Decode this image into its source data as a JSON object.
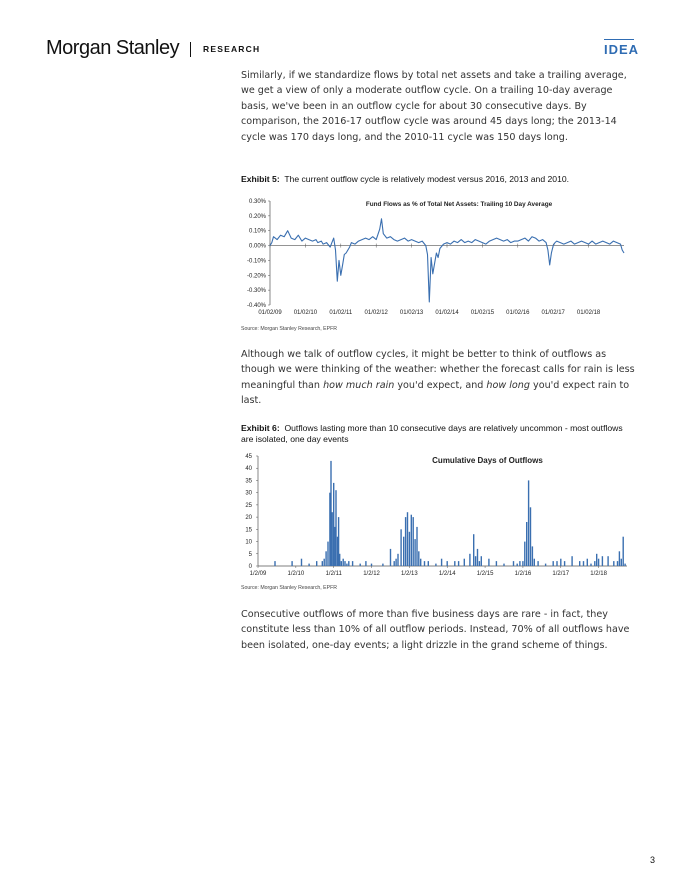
{
  "header": {
    "brand": "Morgan Stanley",
    "section": "RESEARCH",
    "tag": "IDEA"
  },
  "paragraphs": {
    "p1": "Similarly, if we standardize flows by total net assets and take a trailing average, we get a view of only a moderate outflow cycle. On a trailing 10-day average basis, we've been in an outflow cycle for about 30 consecutive days. By comparison, the 2016-17 outflow cycle was around 45 days long; the 2013-14 cycle was 170 days long, and the 2010-11 cycle was 150 days long.",
    "p2_a": "Although we talk of outflow cycles, it might be better to think of outflows as though we were thinking of the weather: whether the forecast calls for rain is less meaningful than ",
    "p2_em1": "how much rain",
    "p2_b": " you'd expect, and ",
    "p2_em2": "how long",
    "p2_c": " you'd expect rain to last.",
    "p3": "Consecutive outflows of more than five business days are rare - in fact, they constitute less than 10% of all outflow periods. Instead, 70% of all outflows have been isolated, one-day events; a light drizzle in the grand scheme of things."
  },
  "exhibits": {
    "e5_label": "Exhibit 5:",
    "e5_title": "The current outflow cycle is relatively modest versus 2016, 2013 and 2010.",
    "e6_label": "Exhibit 6:",
    "e6_title": "Outflows lasting more than 10 consecutive days are relatively uncommon - most outflows are isolated, one day events",
    "source": "Source: Morgan Stanley Research, EPFR"
  },
  "page_number": "3",
  "colors": {
    "series": "#3a6fb0",
    "accent": "#2f6cb3"
  },
  "chart_data": [
    {
      "type": "line",
      "title": "Fund Flows as % of Total Net Assets: Trailing 10 Day Average",
      "xlabel": "",
      "ylabel": "",
      "ylim": [
        -0.4,
        0.3
      ],
      "y_ticks": [
        "0.30%",
        "0.20%",
        "0.10%",
        "0.00%",
        "-0.10%",
        "-0.20%",
        "-0.30%",
        "-0.40%"
      ],
      "x_ticks": [
        "01/02/09",
        "01/02/10",
        "01/02/11",
        "01/02/12",
        "01/02/13",
        "01/02/14",
        "01/02/15",
        "01/02/16",
        "01/02/17",
        "01/02/18"
      ],
      "x_range": [
        2009.0,
        2019.0
      ],
      "series": [
        {
          "x": [
            2009.0,
            2009.05,
            2009.1,
            2009.2,
            2009.3,
            2009.4,
            2009.5,
            2009.6,
            2009.7,
            2009.8,
            2009.9,
            2010.0,
            2010.1,
            2010.2,
            2010.3,
            2010.35,
            2010.45,
            2010.5,
            2010.6,
            2010.7,
            2010.75,
            2010.8,
            2010.85,
            2010.9,
            2010.95,
            2011.0,
            2011.05,
            2011.1,
            2011.15,
            2011.2,
            2011.25,
            2011.3,
            2011.4,
            2011.5,
            2011.6,
            2011.7,
            2011.8,
            2011.9,
            2012.0,
            2012.1,
            2012.15,
            2012.2,
            2012.3,
            2012.4,
            2012.5,
            2012.6,
            2012.7,
            2012.8,
            2012.9,
            2013.0,
            2013.1,
            2013.2,
            2013.3,
            2013.4,
            2013.45,
            2013.5,
            2013.55,
            2013.6,
            2013.65,
            2013.7,
            2013.75,
            2013.8,
            2013.9,
            2014.0,
            2014.1,
            2014.2,
            2014.3,
            2014.4,
            2014.5,
            2014.6,
            2014.7,
            2014.8,
            2014.9,
            2015.0,
            2015.1,
            2015.2,
            2015.3,
            2015.4,
            2015.5,
            2015.6,
            2015.7,
            2015.8,
            2015.9,
            2016.0,
            2016.1,
            2016.2,
            2016.3,
            2016.4,
            2016.5,
            2016.6,
            2016.7,
            2016.8,
            2016.85,
            2016.9,
            2016.95,
            2017.0,
            2017.05,
            2017.1,
            2017.2,
            2017.3,
            2017.4,
            2017.5,
            2017.6,
            2017.7,
            2017.8,
            2017.9,
            2018.0,
            2018.1,
            2018.2,
            2018.3,
            2018.4,
            2018.5,
            2018.6,
            2018.7,
            2018.8,
            2018.9,
            2018.95,
            2019.0
          ],
          "y": [
            0.0,
            0.02,
            0.06,
            0.04,
            0.07,
            0.06,
            0.1,
            0.05,
            0.04,
            0.07,
            0.03,
            0.05,
            0.04,
            0.03,
            0.04,
            0.02,
            0.03,
            0.01,
            0.02,
            -0.01,
            0.02,
            0.05,
            -0.03,
            -0.24,
            -0.1,
            -0.2,
            -0.13,
            -0.06,
            -0.05,
            -0.03,
            -0.01,
            0.02,
            0.01,
            0.03,
            0.04,
            0.05,
            0.04,
            0.06,
            0.04,
            0.11,
            0.18,
            0.08,
            0.05,
            0.06,
            0.04,
            0.03,
            0.04,
            0.05,
            0.03,
            0.04,
            0.03,
            0.02,
            0.03,
            0.0,
            -0.06,
            -0.38,
            -0.08,
            -0.19,
            -0.12,
            -0.05,
            -0.08,
            -0.02,
            0.01,
            0.02,
            0.01,
            0.03,
            0.02,
            0.04,
            0.02,
            0.03,
            0.02,
            0.04,
            0.03,
            0.02,
            0.01,
            0.03,
            0.04,
            0.05,
            0.04,
            0.03,
            0.04,
            0.02,
            0.03,
            0.03,
            0.04,
            0.05,
            0.03,
            0.06,
            0.05,
            0.03,
            0.04,
            0.02,
            -0.03,
            -0.13,
            -0.05,
            0.0,
            0.02,
            0.03,
            0.02,
            0.01,
            0.02,
            0.03,
            0.01,
            0.02,
            0.03,
            0.02,
            0.01,
            0.03,
            0.01,
            0.02,
            0.03,
            0.02,
            0.01,
            0.03,
            0.02,
            0.01,
            -0.03,
            -0.05
          ]
        }
      ]
    },
    {
      "type": "bar",
      "title": "Cumulative Days of Outflows",
      "xlabel": "",
      "ylabel": "",
      "ylim": [
        0,
        45
      ],
      "y_ticks": [
        "45",
        "40",
        "35",
        "30",
        "25",
        "20",
        "15",
        "10",
        "5",
        "0"
      ],
      "x_ticks": [
        "1/2/09",
        "1/2/10",
        "1/2/11",
        "1/2/12",
        "1/2/13",
        "1/2/14",
        "1/2/15",
        "1/2/16",
        "1/2/17",
        "1/2/18"
      ],
      "x_range": [
        2009.0,
        2018.75
      ],
      "x": [
        2009.45,
        2009.9,
        2010.15,
        2010.35,
        2010.55,
        2010.7,
        2010.75,
        2010.8,
        2010.85,
        2010.9,
        2010.93,
        2010.96,
        2011.0,
        2011.03,
        2011.06,
        2011.1,
        2011.13,
        2011.16,
        2011.2,
        2011.25,
        2011.3,
        2011.35,
        2011.4,
        2011.5,
        2011.7,
        2011.85,
        2012.0,
        2012.3,
        2012.5,
        2012.6,
        2012.65,
        2012.7,
        2012.78,
        2012.85,
        2012.9,
        2012.95,
        2013.0,
        2013.05,
        2013.1,
        2013.15,
        2013.2,
        2013.25,
        2013.3,
        2013.4,
        2013.5,
        2013.7,
        2013.85,
        2014.0,
        2014.2,
        2014.3,
        2014.45,
        2014.6,
        2014.7,
        2014.75,
        2014.8,
        2014.85,
        2014.9,
        2015.1,
        2015.3,
        2015.5,
        2015.75,
        2015.85,
        2015.92,
        2016.0,
        2016.05,
        2016.1,
        2016.15,
        2016.2,
        2016.25,
        2016.3,
        2016.4,
        2016.6,
        2016.8,
        2016.9,
        2017.0,
        2017.1,
        2017.3,
        2017.5,
        2017.6,
        2017.7,
        2017.8,
        2017.9,
        2017.95,
        2018.0,
        2018.1,
        2018.25,
        2018.4,
        2018.5,
        2018.55,
        2018.6,
        2018.65,
        2018.7
      ],
      "values": [
        2,
        2,
        3,
        1,
        2,
        2,
        3,
        6,
        10,
        30,
        43,
        22,
        34,
        16,
        31,
        12,
        20,
        5,
        2,
        3,
        2,
        1,
        2,
        2,
        1,
        2,
        1,
        1,
        7,
        2,
        3,
        5,
        15,
        12,
        20,
        22,
        14,
        21,
        20,
        11,
        16,
        6,
        3,
        2,
        2,
        1,
        3,
        2,
        2,
        2,
        3,
        5,
        13,
        4,
        7,
        2,
        4,
        3,
        2,
        1,
        2,
        1,
        2,
        2,
        10,
        18,
        35,
        24,
        8,
        3,
        2,
        1,
        2,
        2,
        3,
        2,
        4,
        2,
        2,
        3,
        1,
        2,
        5,
        3,
        4,
        4,
        2,
        2,
        6,
        3,
        12,
        1
      ]
    }
  ]
}
